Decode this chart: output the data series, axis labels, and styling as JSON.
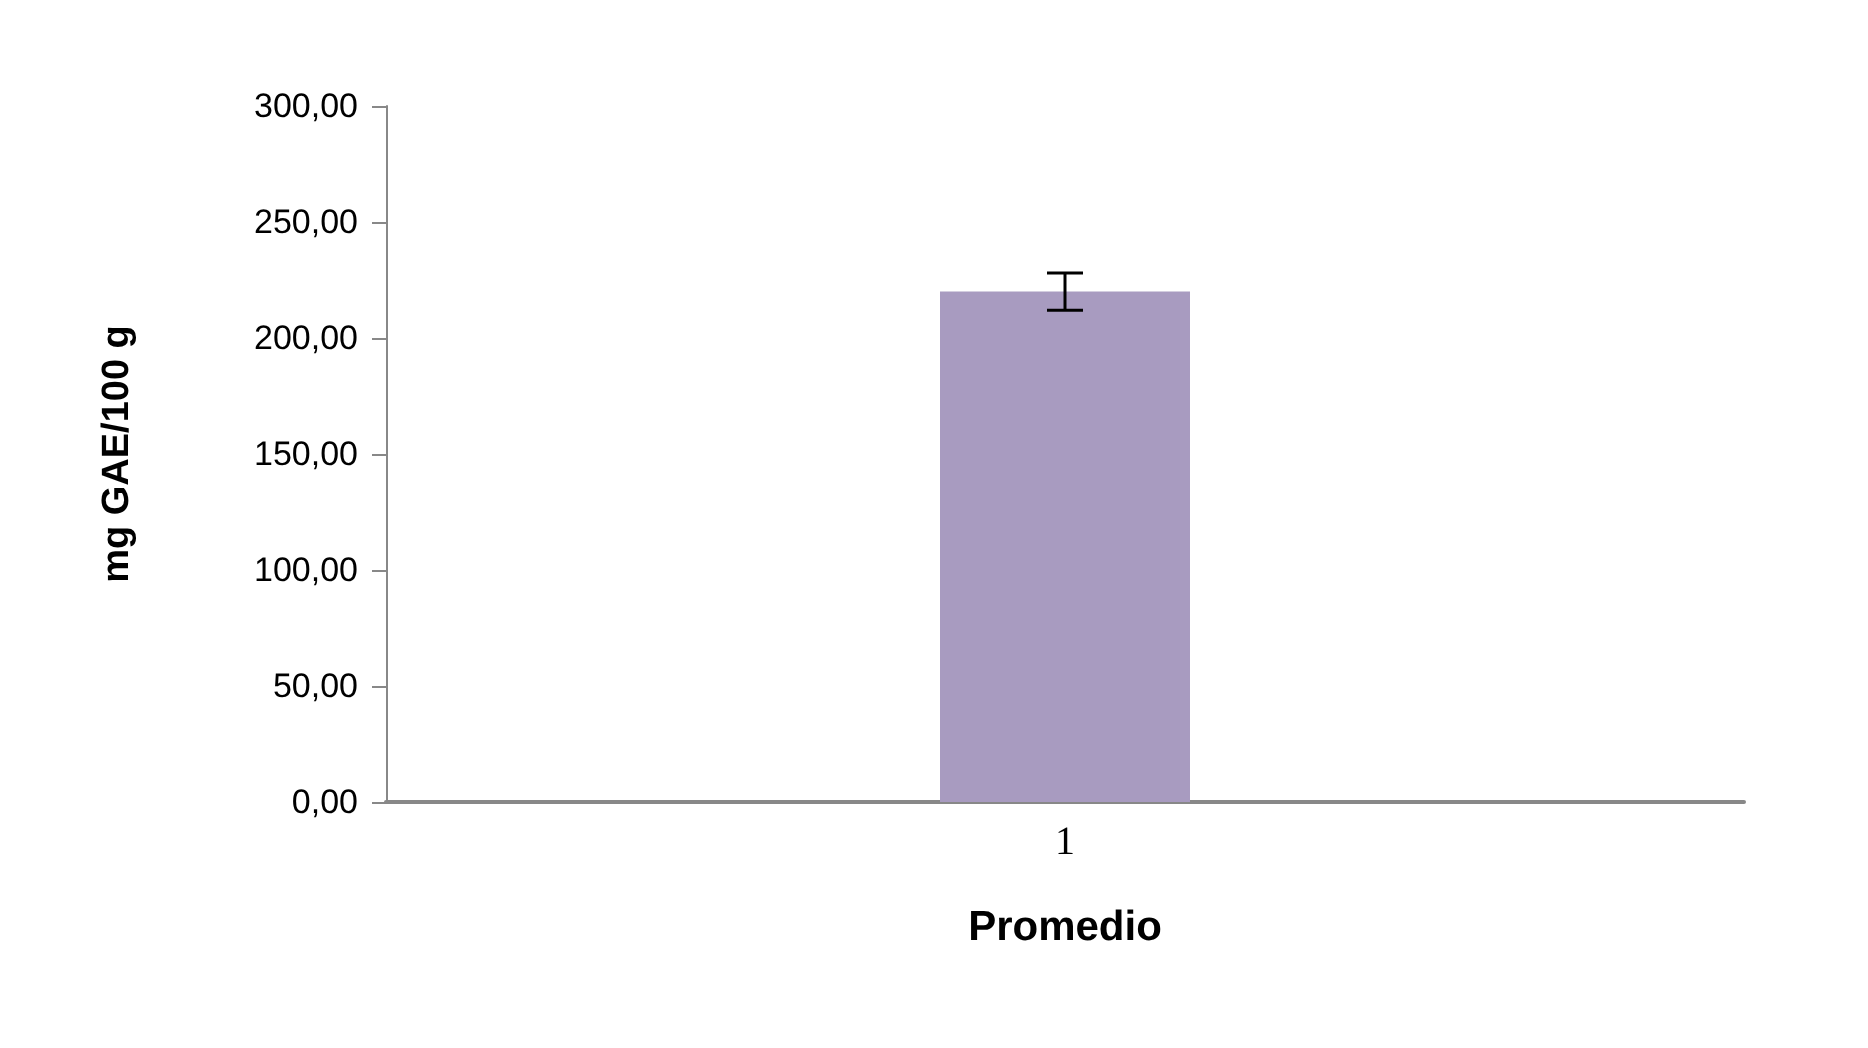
{
  "chart_data": {
    "type": "bar",
    "xlabel": "Promedio",
    "ylabel": "mg GAE/100 g",
    "categories": [
      "1"
    ],
    "values": [
      220
    ],
    "errors": [
      8
    ],
    "color": "#a89bc0",
    "ylim": [
      0,
      300
    ],
    "yticks": [
      {
        "value": 0,
        "label": "0,00"
      },
      {
        "value": 50,
        "label": "50,00"
      },
      {
        "value": 100,
        "label": "100,00"
      },
      {
        "value": 150,
        "label": "150,00"
      },
      {
        "value": 200,
        "label": "200,00"
      },
      {
        "value": 250,
        "label": "250,00"
      },
      {
        "value": 300,
        "label": "300,00"
      }
    ],
    "grid": false
  }
}
